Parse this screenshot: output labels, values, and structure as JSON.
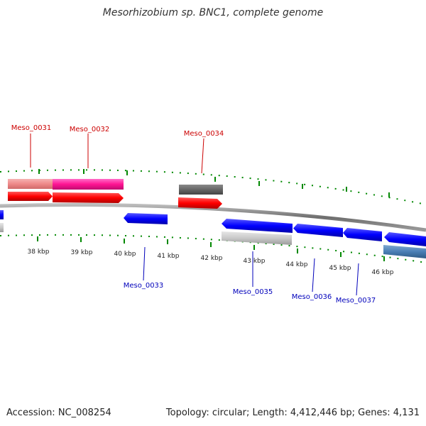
{
  "title": "Mesorhizobium sp. BNC1, complete genome",
  "footer": {
    "accession": "Accession: NC_008254",
    "summary": "Topology: circular; Length: 4,412,446 bp; Genes: 4,131"
  },
  "colors": {
    "forward_label": "#cc0000",
    "reverse_label": "#0000bb",
    "tick": "#008800",
    "backbone": "#808080"
  },
  "scale": {
    "ticks": [
      {
        "label": "38 kbp"
      },
      {
        "label": "39 kbp"
      },
      {
        "label": "40 kbp"
      },
      {
        "label": "41 kbp"
      },
      {
        "label": "42 kbp"
      },
      {
        "label": "43 kbp"
      },
      {
        "label": "44 kbp"
      },
      {
        "label": "45 kbp"
      },
      {
        "label": "46 kbp"
      }
    ]
  },
  "gene_labels": [
    {
      "name": "Meso_0031",
      "strand": "forward"
    },
    {
      "name": "Meso_0032",
      "strand": "forward"
    },
    {
      "name": "Meso_0034",
      "strand": "forward"
    },
    {
      "name": "Meso_0033",
      "strand": "reverse"
    },
    {
      "name": "Meso_0035",
      "strand": "reverse"
    },
    {
      "name": "Meso_0036",
      "strand": "reverse"
    },
    {
      "name": "Meso_0037",
      "strand": "reverse"
    }
  ]
}
